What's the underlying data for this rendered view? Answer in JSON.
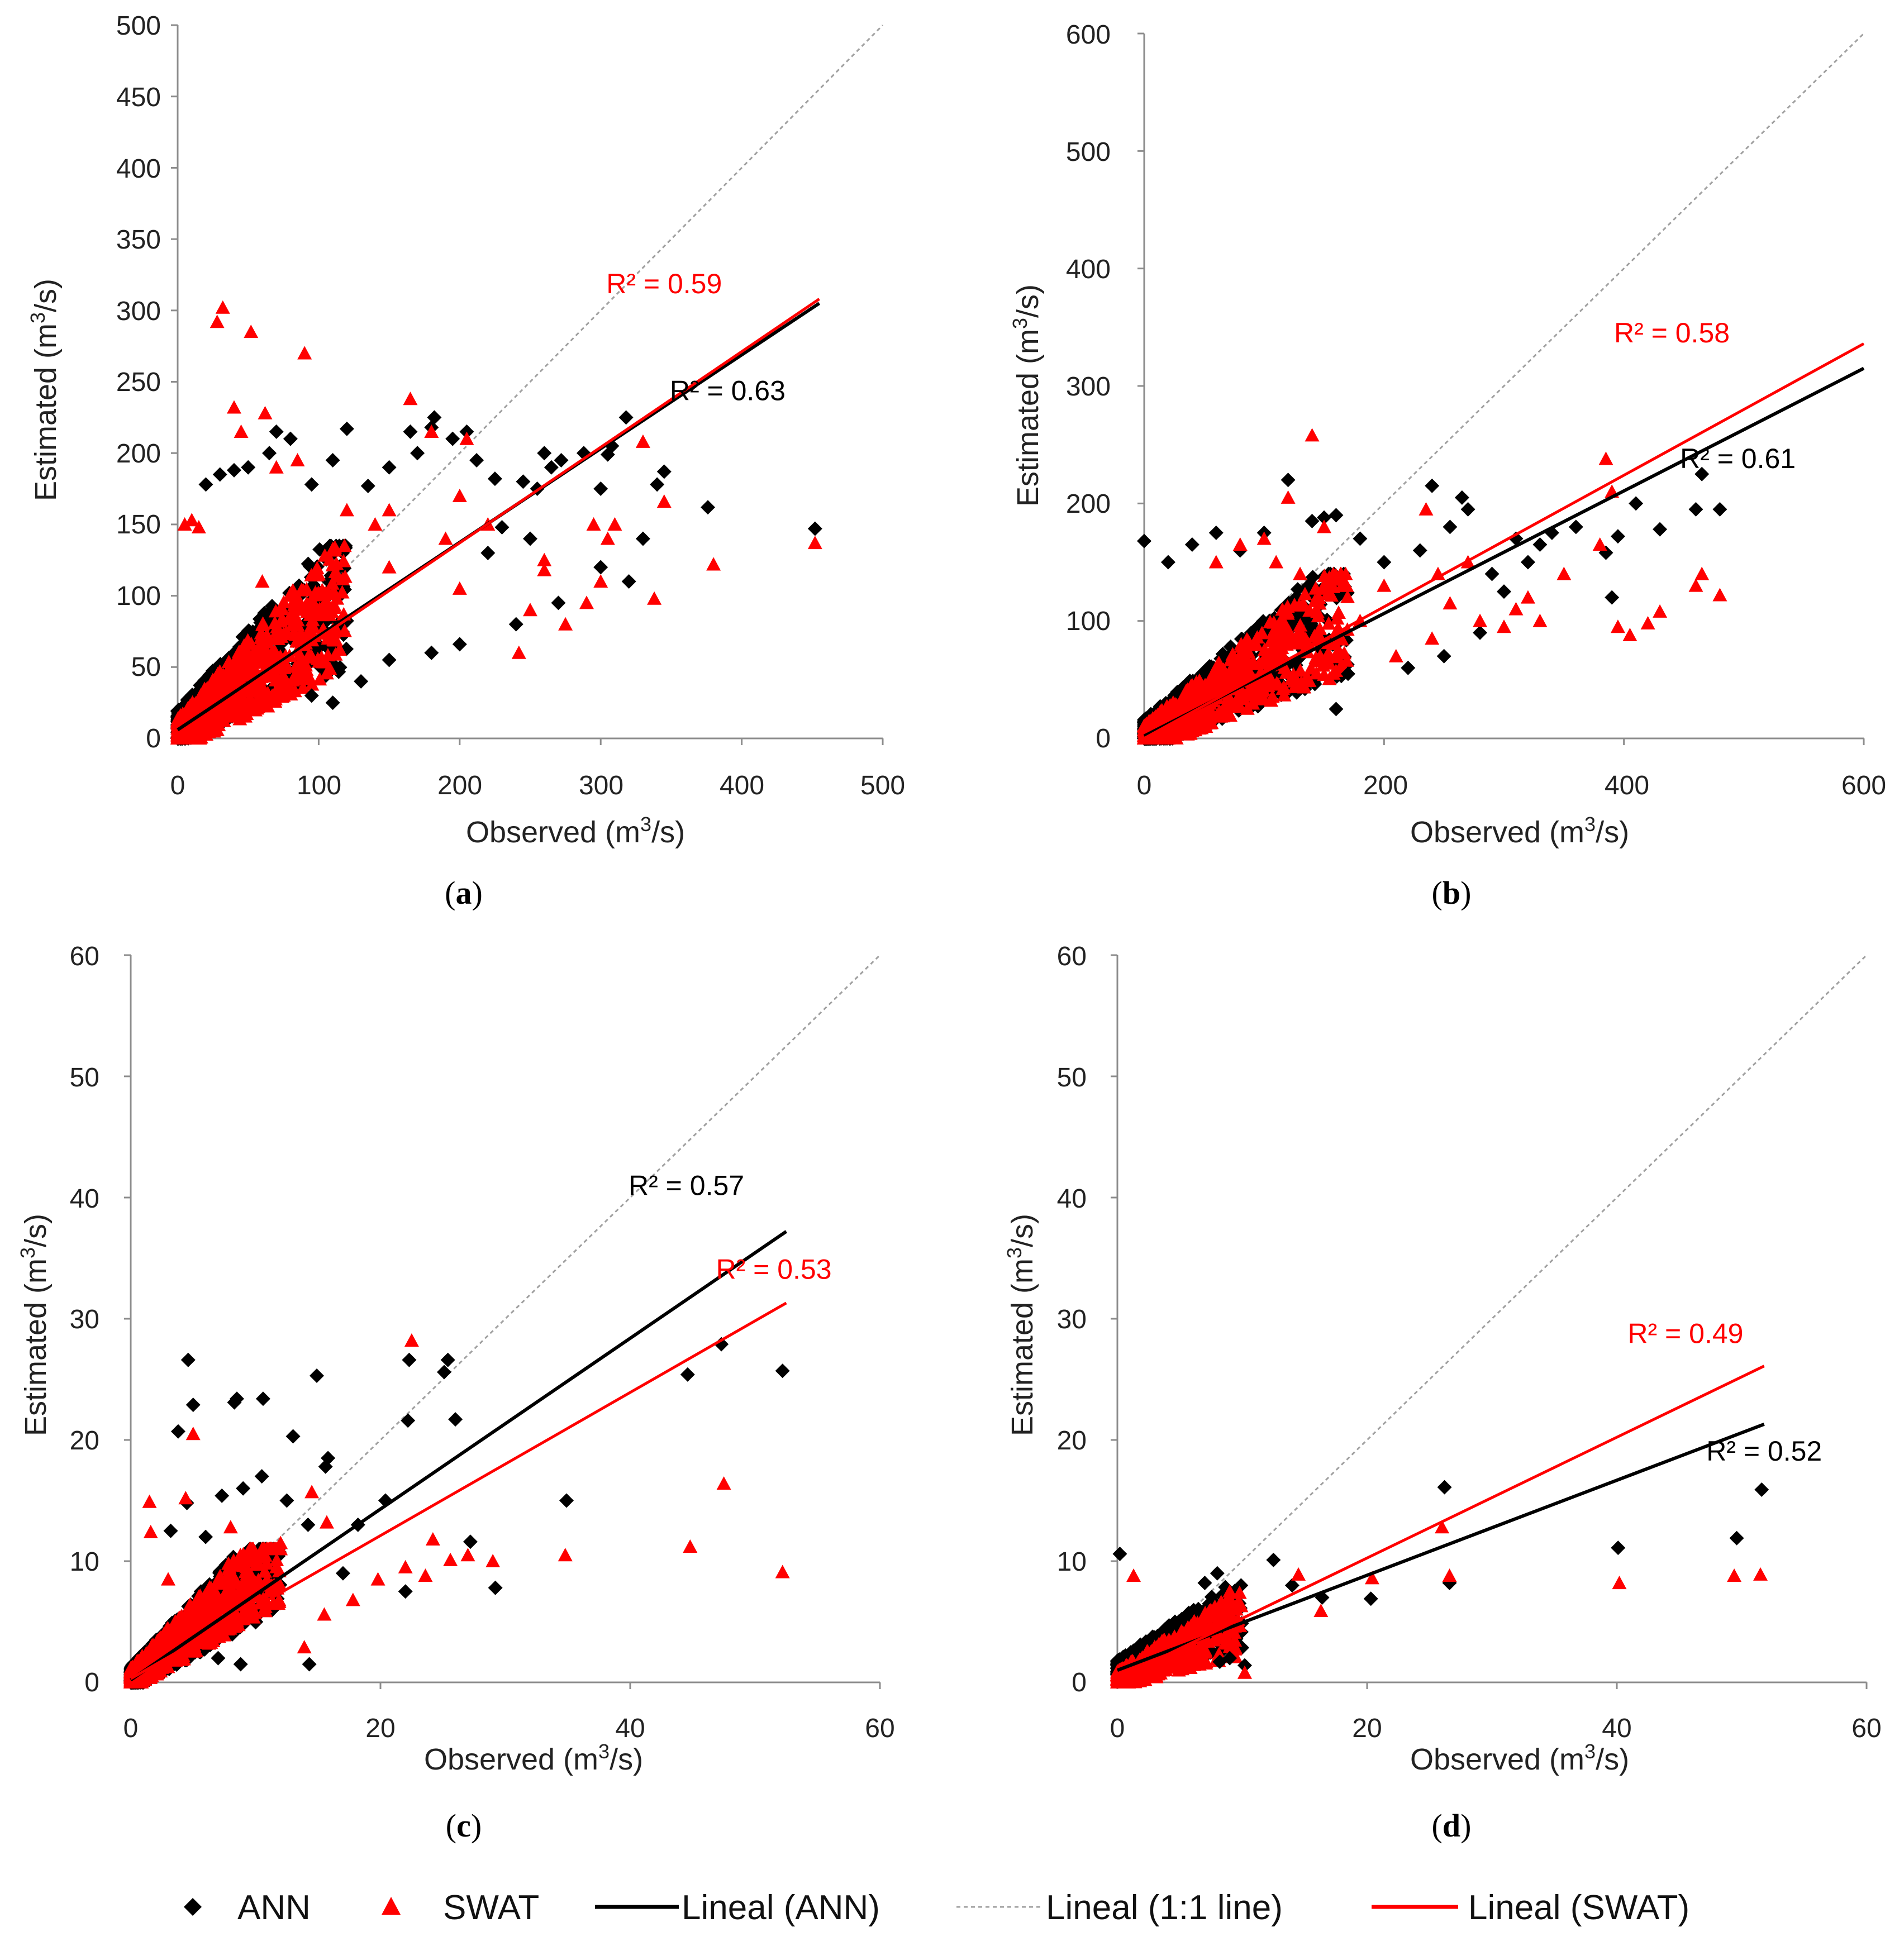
{
  "colors": {
    "ann": "#000000",
    "swat": "#ff0000",
    "oneone": "#a0a0a0",
    "axis": "#8c8c8c"
  },
  "legend": {
    "ann": "ANN",
    "swat": "SWAT",
    "lineal_ann": "Lineal (ANN)",
    "lineal_11": "Lineal (1:1 line)",
    "lineal_swat": "Lineal (SWAT)"
  },
  "chart_data": [
    {
      "type": "scatter",
      "label_open": "(",
      "label_letter": "a",
      "label_close": ")",
      "xlabel_pre": "Observed (m",
      "xlabel_sup": "3",
      "xlabel_post": "/s)",
      "ylabel_pre": "Estimated (m",
      "ylabel_sup": "3",
      "ylabel_post": "/s)",
      "xlim": [
        0,
        500
      ],
      "ylim": [
        0,
        500
      ],
      "xticks": [
        0,
        100,
        200,
        300,
        400,
        500
      ],
      "yticks": [
        0,
        50,
        100,
        150,
        200,
        250,
        300,
        350,
        400,
        450,
        500
      ],
      "n_bulk": 700,
      "bulk_max": 120,
      "bulk_ymax": 135,
      "seed": 11,
      "ann_trend": {
        "x0": 0,
        "y0": 6,
        "x1": 455,
        "y1": 305,
        "label": "R² = 0.63",
        "lx": 390,
        "ly": 237
      },
      "swat_trend": {
        "x0": 0,
        "y0": 3,
        "x1": 455,
        "y1": 308,
        "label": "R² = 0.59",
        "lx": 345,
        "ly": 312
      },
      "ann_points": [
        [
          452,
          147
        ],
        [
          376,
          162
        ],
        [
          345,
          187
        ],
        [
          340,
          178
        ],
        [
          318,
          225
        ],
        [
          308,
          205
        ],
        [
          305,
          199
        ],
        [
          300,
          175
        ],
        [
          288,
          200
        ],
        [
          272,
          195
        ],
        [
          265,
          190
        ],
        [
          260,
          200
        ],
        [
          255,
          175
        ],
        [
          245,
          180
        ],
        [
          230,
          148
        ],
        [
          225,
          182
        ],
        [
          212,
          195
        ],
        [
          205,
          215
        ],
        [
          195,
          210
        ],
        [
          182,
          225
        ],
        [
          180,
          218
        ],
        [
          170,
          200
        ],
        [
          165,
          215
        ],
        [
          150,
          190
        ],
        [
          135,
          177
        ],
        [
          120,
          217
        ],
        [
          110,
          195
        ],
        [
          95,
          178
        ],
        [
          80,
          210
        ],
        [
          70,
          215
        ],
        [
          65,
          200
        ],
        [
          50,
          190
        ],
        [
          40,
          188
        ],
        [
          30,
          185
        ],
        [
          20,
          178
        ],
        [
          95,
          30
        ],
        [
          110,
          25
        ],
        [
          130,
          40
        ],
        [
          150,
          55
        ],
        [
          180,
          60
        ],
        [
          200,
          66
        ],
        [
          240,
          80
        ],
        [
          270,
          95
        ],
        [
          300,
          120
        ],
        [
          330,
          140
        ],
        [
          320,
          110
        ],
        [
          250,
          140
        ],
        [
          220,
          130
        ]
      ],
      "swat_points": [
        [
          452,
          137
        ],
        [
          380,
          122
        ],
        [
          345,
          166
        ],
        [
          338,
          98
        ],
        [
          330,
          208
        ],
        [
          305,
          140
        ],
        [
          300,
          110
        ],
        [
          295,
          150
        ],
        [
          290,
          95
        ],
        [
          275,
          80
        ],
        [
          260,
          125
        ],
        [
          250,
          90
        ],
        [
          242,
          60
        ],
        [
          220,
          150
        ],
        [
          205,
          210
        ],
        [
          200,
          170
        ],
        [
          190,
          140
        ],
        [
          180,
          215
        ],
        [
          165,
          238
        ],
        [
          150,
          160
        ],
        [
          140,
          150
        ],
        [
          120,
          160
        ],
        [
          90,
          270
        ],
        [
          85,
          195
        ],
        [
          70,
          190
        ],
        [
          62,
          228
        ],
        [
          52,
          285
        ],
        [
          40,
          232
        ],
        [
          32,
          302
        ],
        [
          28,
          292
        ],
        [
          45,
          215
        ],
        [
          10,
          153
        ],
        [
          5,
          150
        ],
        [
          15,
          148
        ],
        [
          60,
          110
        ],
        [
          100,
          115
        ],
        [
          150,
          120
        ],
        [
          200,
          105
        ],
        [
          260,
          118
        ],
        [
          310,
          150
        ]
      ]
    },
    {
      "type": "scatter",
      "label_open": "(",
      "label_letter": "b",
      "label_close": ")",
      "xlabel_pre": "Observed (m",
      "xlabel_sup": "3",
      "xlabel_post": "/s)",
      "ylabel_pre": "Estimated (m",
      "ylabel_sup": "3",
      "ylabel_post": "/s)",
      "xlim": [
        0,
        600
      ],
      "ylim": [
        0,
        600
      ],
      "xticks": [
        0,
        200,
        400,
        600
      ],
      "yticks": [
        0,
        100,
        200,
        300,
        400,
        500,
        600
      ],
      "n_bulk": 650,
      "bulk_max": 170,
      "bulk_ymax": 140,
      "seed": 23,
      "ann_trend": {
        "x0": 0,
        "y0": 2,
        "x1": 600,
        "y1": 315,
        "label": "R² = 0.61",
        "lx": 495,
        "ly": 230
      },
      "swat_trend": {
        "x0": 0,
        "y0": 0,
        "x1": 600,
        "y1": 336,
        "label": "R² = 0.58",
        "lx": 440,
        "ly": 337
      },
      "ann_points": [
        [
          480,
          195
        ],
        [
          465,
          225
        ],
        [
          460,
          195
        ],
        [
          430,
          178
        ],
        [
          410,
          200
        ],
        [
          395,
          172
        ],
        [
          390,
          120
        ],
        [
          385,
          158
        ],
        [
          360,
          180
        ],
        [
          340,
          175
        ],
        [
          330,
          165
        ],
        [
          320,
          150
        ],
        [
          310,
          170
        ],
        [
          270,
          195
        ],
        [
          265,
          205
        ],
        [
          255,
          180
        ],
        [
          240,
          215
        ],
        [
          230,
          160
        ],
        [
          200,
          150
        ],
        [
          180,
          170
        ],
        [
          160,
          190
        ],
        [
          150,
          188
        ],
        [
          140,
          185
        ],
        [
          120,
          220
        ],
        [
          100,
          175
        ],
        [
          80,
          160
        ],
        [
          60,
          175
        ],
        [
          40,
          165
        ],
        [
          0,
          168
        ],
        [
          20,
          150
        ],
        [
          290,
          140
        ],
        [
          300,
          125
        ],
        [
          160,
          25
        ],
        [
          170,
          55
        ],
        [
          220,
          60
        ],
        [
          250,
          70
        ],
        [
          280,
          90
        ]
      ],
      "swat_points": [
        [
          480,
          122
        ],
        [
          465,
          140
        ],
        [
          460,
          130
        ],
        [
          430,
          108
        ],
        [
          420,
          98
        ],
        [
          405,
          88
        ],
        [
          395,
          95
        ],
        [
          390,
          210
        ],
        [
          385,
          238
        ],
        [
          380,
          165
        ],
        [
          350,
          140
        ],
        [
          330,
          100
        ],
        [
          320,
          120
        ],
        [
          310,
          110
        ],
        [
          300,
          95
        ],
        [
          270,
          150
        ],
        [
          255,
          115
        ],
        [
          245,
          140
        ],
        [
          235,
          195
        ],
        [
          200,
          130
        ],
        [
          180,
          100
        ],
        [
          140,
          258
        ],
        [
          120,
          205
        ],
        [
          100,
          170
        ],
        [
          80,
          165
        ],
        [
          60,
          150
        ],
        [
          150,
          180
        ],
        [
          130,
          140
        ],
        [
          110,
          150
        ],
        [
          210,
          70
        ],
        [
          240,
          85
        ],
        [
          280,
          100
        ]
      ]
    },
    {
      "type": "scatter",
      "label_open": "(",
      "label_letter": "c",
      "label_close": ")",
      "xlabel_pre": "Observed (m",
      "xlabel_sup": "3",
      "xlabel_post": "/s)",
      "ylabel_pre": "Estimated (m",
      "ylabel_sup": "3",
      "ylabel_post": "/s)",
      "xlim": [
        0,
        60
      ],
      "ylim": [
        0,
        60
      ],
      "xticks": [
        0,
        20,
        40,
        60
      ],
      "yticks": [
        0,
        10,
        20,
        30,
        40,
        50,
        60
      ],
      "n_bulk": 700,
      "bulk_max": 12,
      "bulk_ymax": 11,
      "seed": 37,
      "ann_trend": {
        "x0": 0,
        "y0": 0.2,
        "x1": 52.5,
        "y1": 37.2,
        "label": "R² = 0.57",
        "lx": 44.5,
        "ly": 40.2
      },
      "swat_trend": {
        "x0": 0,
        "y0": 0.3,
        "x1": 52.5,
        "y1": 31.3,
        "label": "R² = 0.53",
        "lx": 51.5,
        "ly": 33.3
      },
      "ann_points": [
        [
          52.2,
          25.7
        ],
        [
          47.3,
          27.9
        ],
        [
          44.6,
          25.4
        ],
        [
          34.9,
          15.0
        ],
        [
          29.2,
          7.8
        ],
        [
          27.2,
          11.6
        ],
        [
          26.0,
          21.7
        ],
        [
          25.4,
          26.6
        ],
        [
          25.1,
          25.6
        ],
        [
          22.2,
          21.6
        ],
        [
          22.3,
          26.6
        ],
        [
          22.0,
          7.5
        ],
        [
          20.4,
          15.0
        ],
        [
          18.2,
          13.0
        ],
        [
          17.0,
          9.0
        ],
        [
          15.8,
          18.5
        ],
        [
          15.6,
          17.8
        ],
        [
          14.9,
          25.3
        ],
        [
          14.2,
          13.0
        ],
        [
          14.3,
          1.5
        ],
        [
          13.0,
          20.3
        ],
        [
          12.5,
          15.0
        ],
        [
          10.6,
          23.4
        ],
        [
          10.5,
          17.0
        ],
        [
          9.0,
          16.0
        ],
        [
          8.5,
          23.4
        ],
        [
          8.3,
          23.1
        ],
        [
          7.3,
          15.4
        ],
        [
          5.0,
          22.9
        ],
        [
          4.6,
          26.6
        ],
        [
          3.8,
          20.7
        ],
        [
          3.2,
          12.5
        ],
        [
          4.5,
          14.8
        ],
        [
          6.0,
          12.0
        ],
        [
          8.8,
          1.5
        ],
        [
          7.0,
          2.0
        ]
      ],
      "swat_points": [
        [
          52.2,
          9.1
        ],
        [
          47.5,
          16.4
        ],
        [
          44.8,
          11.2
        ],
        [
          34.8,
          10.5
        ],
        [
          29.0,
          10.0
        ],
        [
          27.0,
          10.5
        ],
        [
          25.6,
          10.1
        ],
        [
          24.2,
          11.8
        ],
        [
          23.6,
          8.8
        ],
        [
          22.5,
          28.2
        ],
        [
          22.0,
          9.5
        ],
        [
          19.8,
          8.5
        ],
        [
          17.8,
          6.8
        ],
        [
          15.7,
          13.2
        ],
        [
          15.5,
          5.6
        ],
        [
          14.5,
          15.7
        ],
        [
          13.9,
          2.9
        ],
        [
          12.0,
          11.5
        ],
        [
          10.8,
          8.0
        ],
        [
          5.0,
          20.5
        ],
        [
          4.4,
          15.2
        ],
        [
          1.5,
          14.9
        ],
        [
          1.6,
          12.4
        ],
        [
          3.0,
          8.5
        ],
        [
          8.0,
          12.8
        ]
      ]
    },
    {
      "type": "scatter",
      "label_open": "(",
      "label_letter": "d",
      "label_close": ")",
      "xlabel_pre": "Observed (m",
      "xlabel_sup": "3",
      "xlabel_post": "/s)",
      "ylabel_pre": "Estimated (m",
      "ylabel_sup": "3",
      "ylabel_post": "/s)",
      "xlim": [
        0,
        60
      ],
      "ylim": [
        0,
        60
      ],
      "xticks": [
        0,
        20,
        40,
        60
      ],
      "yticks": [
        0,
        10,
        20,
        30,
        40,
        50,
        60
      ],
      "n_bulk": 500,
      "bulk_max": 10,
      "bulk_ymax": 8,
      "seed": 53,
      "ann_trend": {
        "x0": 0,
        "y0": 1.0,
        "x1": 51.8,
        "y1": 21.3,
        "label": "R² = 0.52",
        "lx": 51.8,
        "ly": 18.3
      },
      "swat_trend": {
        "x0": 0,
        "y0": 0.3,
        "x1": 51.8,
        "y1": 26.1,
        "label": "R² = 0.49",
        "lx": 45.5,
        "ly": 28.0
      },
      "ann_points": [
        [
          51.6,
          15.9
        ],
        [
          49.6,
          11.9
        ],
        [
          40.1,
          11.1
        ],
        [
          26.6,
          8.2
        ],
        [
          26.2,
          16.1
        ],
        [
          20.3,
          6.9
        ],
        [
          16.4,
          7.0
        ],
        [
          12.5,
          10.1
        ],
        [
          10.2,
          1.4
        ],
        [
          9.0,
          2.0
        ],
        [
          8.2,
          1.7
        ],
        [
          0.2,
          10.6
        ],
        [
          14.0,
          8.0
        ],
        [
          8.0,
          9.0
        ],
        [
          7.0,
          8.2
        ]
      ],
      "swat_points": [
        [
          51.5,
          8.9
        ],
        [
          49.4,
          8.8
        ],
        [
          40.2,
          8.2
        ],
        [
          26.6,
          8.8
        ],
        [
          26.0,
          12.8
        ],
        [
          20.4,
          8.6
        ],
        [
          16.3,
          5.9
        ],
        [
          14.5,
          8.9
        ],
        [
          10.2,
          0.8
        ],
        [
          1.3,
          8.8
        ],
        [
          9.0,
          7.5
        ]
      ]
    }
  ]
}
